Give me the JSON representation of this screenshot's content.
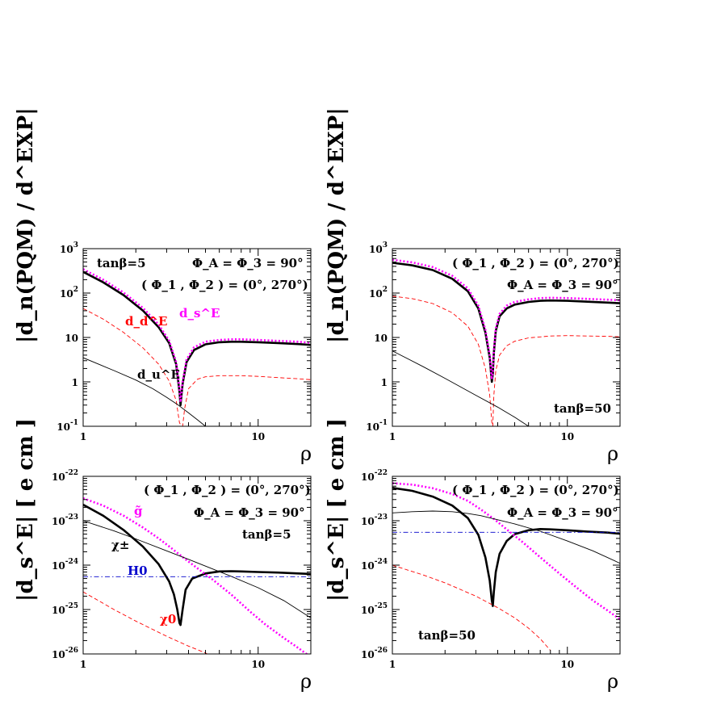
{
  "figure": {
    "panels": [
      {
        "id": "top-left",
        "ylabel": "|d_n(PQM) / d^EXP|",
        "xlabel": "ρ",
        "annotations": [
          {
            "text": "tanβ=5"
          },
          {
            "text": "Φ_A = Φ_3 = 90°"
          },
          {
            "text": "( Φ_1 , Φ_2 ) = (0°, 270°)"
          }
        ],
        "curve_labels": [
          {
            "text": "d_d^E",
            "color": "#ff0000"
          },
          {
            "text": "d_s^E",
            "color": "#ff00ff"
          },
          {
            "text": "d_u^E",
            "color": "#000000"
          }
        ]
      },
      {
        "id": "top-right",
        "ylabel": "|d_n(PQM) / d^EXP|",
        "xlabel": "ρ",
        "annotations": [
          {
            "text": "( Φ_1 , Φ_2 ) = (0°, 270°)"
          },
          {
            "text": "Φ_A = Φ_3 = 90°"
          },
          {
            "text": "tanβ=50"
          }
        ],
        "curve_labels": []
      },
      {
        "id": "bottom-left",
        "ylabel": "|d_s^E| [ e cm ]",
        "xlabel": "ρ",
        "annotations": [
          {
            "text": "( Φ_1 , Φ_2 ) = (0°, 270°)"
          },
          {
            "text": "Φ_A = Φ_3 = 90°"
          },
          {
            "text": "tanβ=5"
          }
        ],
        "curve_labels": [
          {
            "text": "g̃",
            "color": "#ff00ff"
          },
          {
            "text": "χ±",
            "color": "#000000"
          },
          {
            "text": "H0",
            "color": "#0000cc"
          },
          {
            "text": "χ0",
            "color": "#ff0000"
          }
        ]
      },
      {
        "id": "bottom-right",
        "ylabel": "|d_s^E| [ e cm ]",
        "xlabel": "ρ",
        "annotations": [
          {
            "text": "( Φ_1 , Φ_2 ) = (0°, 270°)"
          },
          {
            "text": "Φ_A = Φ_3 = 90°"
          },
          {
            "text": "tanβ=50"
          }
        ],
        "curve_labels": []
      }
    ]
  },
  "chart_data": [
    {
      "type": "line",
      "panel": "top-left",
      "xscale": "log",
      "yscale": "log",
      "xlim": [
        1,
        20
      ],
      "ylim": [
        0.1,
        1000
      ],
      "xlabel": "ρ",
      "ylabel": "|d_n(PQM) / d^EXP|",
      "xticks": [
        1,
        10
      ],
      "yticks": [
        0.1,
        1,
        10,
        100,
        1000
      ],
      "series": [
        {
          "name": "total",
          "color": "#000000",
          "style": "thick",
          "x": [
            1,
            1.3,
            1.7,
            2.2,
            2.7,
            3.1,
            3.4,
            3.55,
            3.6,
            3.7,
            3.9,
            4.3,
            5,
            6,
            7,
            8,
            10,
            13,
            17,
            20
          ],
          "y": [
            300,
            175,
            90,
            40,
            17,
            7.5,
            2.5,
            0.6,
            0.3,
            0.9,
            2.8,
            5.2,
            7.0,
            7.8,
            8.0,
            8.0,
            7.8,
            7.5,
            7.1,
            6.8
          ]
        },
        {
          "name": "d_s^E",
          "color": "#ff00ff",
          "style": "dotted",
          "x": [
            1,
            1.3,
            1.7,
            2.2,
            2.7,
            3.1,
            3.4,
            3.55,
            3.6,
            3.7,
            3.9,
            4.3,
            5,
            6,
            7,
            8,
            10,
            13,
            17,
            20
          ],
          "y": [
            345,
            200,
            103,
            46,
            19.5,
            8.5,
            2.8,
            0.7,
            0.35,
            1.0,
            3.2,
            6.0,
            8.0,
            8.8,
            9.1,
            9.1,
            8.8,
            8.4,
            8.0,
            7.6
          ]
        },
        {
          "name": "d_d^E",
          "color": "#ff0000",
          "style": "dashed",
          "x": [
            1,
            1.3,
            1.7,
            2.2,
            2.7,
            3.1,
            3.4,
            3.55,
            3.65,
            3.7,
            3.8,
            4.0,
            4.5,
            5,
            6,
            8,
            10,
            13,
            17,
            20
          ],
          "y": [
            45,
            26,
            13,
            5.8,
            2.5,
            1.05,
            0.38,
            0.12,
            0.1,
            0.1,
            0.25,
            0.7,
            1.15,
            1.3,
            1.38,
            1.38,
            1.33,
            1.25,
            1.17,
            1.12
          ]
        },
        {
          "name": "d_u^E",
          "color": "#000000",
          "style": "thin",
          "x": [
            1,
            1.5,
            2,
            2.5,
            3,
            3.5,
            4,
            4.5,
            5
          ],
          "y": [
            3.5,
            1.8,
            1.1,
            0.7,
            0.45,
            0.3,
            0.2,
            0.14,
            0.1
          ]
        }
      ]
    },
    {
      "type": "line",
      "panel": "top-right",
      "xscale": "log",
      "yscale": "log",
      "xlim": [
        1,
        20
      ],
      "ylim": [
        0.1,
        1000
      ],
      "xlabel": "ρ",
      "ylabel": "|d_n(PQM) / d^EXP|",
      "xticks": [
        1,
        10
      ],
      "yticks": [
        0.1,
        1,
        10,
        100,
        1000
      ],
      "series": [
        {
          "name": "total",
          "color": "#000000",
          "style": "thick",
          "x": [
            1,
            1.3,
            1.7,
            2.2,
            2.7,
            3.1,
            3.4,
            3.6,
            3.7,
            3.75,
            3.8,
            3.9,
            4.1,
            4.5,
            5,
            6,
            7,
            8,
            10,
            13,
            17,
            20
          ],
          "y": [
            480,
            420,
            330,
            210,
            110,
            45,
            13,
            3.5,
            1.0,
            1.5,
            4.5,
            14,
            30,
            45,
            55,
            63,
            67,
            68,
            67,
            64,
            61,
            59
          ]
        },
        {
          "name": "d_s^E",
          "color": "#ff00ff",
          "style": "dotted",
          "x": [
            1,
            1.3,
            1.7,
            2.2,
            2.7,
            3.1,
            3.4,
            3.6,
            3.7,
            3.75,
            3.8,
            3.9,
            4.1,
            4.5,
            5,
            6,
            7,
            8,
            10,
            13,
            17,
            20
          ],
          "y": [
            560,
            490,
            385,
            245,
            128,
            52,
            15,
            4.0,
            1.15,
            1.7,
            5.2,
            16,
            34,
            52,
            63,
            72,
            77,
            78,
            77,
            74,
            71,
            69
          ]
        },
        {
          "name": "d_d^E",
          "color": "#ff0000",
          "style": "dashed",
          "x": [
            1,
            1.3,
            1.7,
            2.2,
            2.7,
            3.1,
            3.4,
            3.6,
            3.7,
            3.75,
            3.8,
            3.9,
            4.1,
            4.5,
            5,
            6,
            8,
            10,
            13,
            17,
            20
          ],
          "y": [
            85,
            75,
            58,
            36,
            18,
            7,
            2.0,
            0.5,
            0.12,
            0.1,
            0.5,
            1.8,
            4.0,
            6.5,
            8.2,
            9.8,
            10.8,
            11.0,
            10.8,
            10.6,
            10.4
          ]
        },
        {
          "name": "d_u^E",
          "color": "#000000",
          "style": "thin",
          "x": [
            1,
            1.5,
            2,
            3,
            4,
            5,
            6
          ],
          "y": [
            5,
            2.2,
            1.2,
            0.5,
            0.27,
            0.16,
            0.1
          ]
        }
      ]
    },
    {
      "type": "line",
      "panel": "bottom-left",
      "xscale": "log",
      "yscale": "log",
      "xlim": [
        1,
        20
      ],
      "ylim": [
        1e-26,
        1e-22
      ],
      "xlabel": "ρ",
      "ylabel": "|d_s^E| [ e cm ]",
      "xticks": [
        1,
        10
      ],
      "yticks": [
        1e-26,
        1e-25,
        1e-24,
        1e-23,
        1e-22
      ],
      "series": [
        {
          "name": "total",
          "color": "#000000",
          "style": "thick",
          "x": [
            1,
            1.3,
            1.7,
            2.2,
            2.7,
            3.1,
            3.3,
            3.45,
            3.55,
            3.6,
            3.7,
            3.85,
            4.2,
            5,
            6,
            7,
            8,
            10,
            13,
            17,
            20
          ],
          "y": [
            2.3e-23,
            1.3e-23,
            6.2e-24,
            2.6e-24,
            1.05e-24,
            4.3e-25,
            2.2e-25,
            1e-25,
            5e-26,
            4.5e-26,
            1e-25,
            2.8e-25,
            5e-25,
            6.5e-25,
            7.2e-25,
            7.3e-25,
            7.2e-25,
            7e-25,
            6.8e-25,
            6.5e-25,
            6.3e-25
          ]
        },
        {
          "name": "g̃",
          "color": "#ff00ff",
          "style": "dotted",
          "x": [
            1,
            1.3,
            1.7,
            2.2,
            2.7,
            3.2,
            3.8,
            4.5,
            5.5,
            7,
            9,
            11,
            14,
            17,
            20
          ],
          "y": [
            3.2e-23,
            2.2e-23,
            1.3e-23,
            7e-24,
            4e-24,
            2.4e-24,
            1.4e-24,
            8.5e-25,
            4.7e-25,
            2.2e-25,
            9e-26,
            4.6e-26,
            2.3e-26,
            1.35e-26,
            8.5e-27
          ]
        },
        {
          "name": "χ±",
          "color": "#000000",
          "style": "thin",
          "x": [
            1,
            1.5,
            2,
            3,
            4,
            5,
            7,
            10,
            14,
            20
          ],
          "y": [
            1e-23,
            5.9e-24,
            3.9e-24,
            2.1e-24,
            1.35e-24,
            9.5e-25,
            5.6e-25,
            3.1e-25,
            1.6e-25,
            6.5e-26
          ]
        },
        {
          "name": "H0",
          "color": "#0000cc",
          "style": "dashdot",
          "x": [
            1,
            20
          ],
          "y": [
            5.5e-25,
            5.5e-25
          ]
        },
        {
          "name": "χ0",
          "color": "#ff0000",
          "style": "dashed",
          "x": [
            1,
            1.5,
            2,
            3,
            4,
            5,
            6
          ],
          "y": [
            2.5e-25,
            1e-25,
            5.5e-26,
            2.5e-26,
            1.5e-26,
            1.05e-26,
            7e-27
          ]
        }
      ]
    },
    {
      "type": "line",
      "panel": "bottom-right",
      "xscale": "log",
      "yscale": "log",
      "xlim": [
        1,
        20
      ],
      "ylim": [
        1e-26,
        1e-22
      ],
      "xlabel": "ρ",
      "ylabel": "|d_s^E| [ e cm ]",
      "xticks": [
        1,
        10
      ],
      "yticks": [
        1e-26,
        1e-25,
        1e-24,
        1e-23,
        1e-22
      ],
      "series": [
        {
          "name": "total",
          "color": "#000000",
          "style": "thick",
          "x": [
            1,
            1.3,
            1.7,
            2.2,
            2.7,
            3.1,
            3.4,
            3.6,
            3.7,
            3.75,
            3.8,
            3.9,
            4.1,
            4.5,
            5,
            6,
            7,
            8,
            10,
            13,
            17,
            20
          ],
          "y": [
            5.5e-23,
            4.7e-23,
            3.5e-23,
            2.2e-23,
            1.15e-23,
            4.8e-24,
            1.5e-24,
            4.5e-25,
            1.6e-25,
            1.2e-25,
            2.5e-25,
            7e-25,
            1.8e-24,
            3.5e-24,
            5e-24,
            6.1e-24,
            6.5e-24,
            6.4e-24,
            6.1e-24,
            5.7e-24,
            5.4e-24,
            5.1e-24
          ]
        },
        {
          "name": "g̃",
          "color": "#ff00ff",
          "style": "dotted",
          "x": [
            1,
            1.3,
            1.7,
            2.2,
            2.7,
            3.2,
            3.8,
            4.5,
            5.5,
            7,
            9,
            11,
            14,
            17,
            20
          ],
          "y": [
            7e-23,
            6.5e-23,
            5.4e-23,
            4e-23,
            2.8e-23,
            1.8e-23,
            1.1e-23,
            6.4e-24,
            3.4e-24,
            1.5e-24,
            6.5e-25,
            3.4e-25,
            1.6e-25,
            9.5e-26,
            6e-26
          ]
        },
        {
          "name": "χ±",
          "color": "#000000",
          "style": "thin",
          "x": [
            1,
            1.3,
            1.7,
            2.2,
            2.7,
            3.2,
            4,
            5,
            7,
            10,
            14,
            20
          ],
          "y": [
            1.5e-23,
            1.6e-23,
            1.65e-23,
            1.6e-23,
            1.45e-23,
            1.3e-23,
            1.05e-23,
            8.5e-24,
            5.8e-24,
            3.5e-24,
            2.1e-24,
            1.1e-24
          ]
        },
        {
          "name": "H0",
          "color": "#0000cc",
          "style": "dashdot",
          "x": [
            1,
            20
          ],
          "y": [
            5.5e-24,
            5.5e-24
          ]
        },
        {
          "name": "χ0",
          "color": "#ff0000",
          "style": "dashed",
          "x": [
            1,
            1.5,
            2,
            3,
            4,
            5,
            6,
            7,
            8
          ],
          "y": [
            1e-24,
            6e-25,
            4e-25,
            2e-25,
            1.1e-25,
            6.5e-26,
            3.8e-26,
            2.2e-26,
            1.2e-26
          ]
        }
      ]
    }
  ]
}
